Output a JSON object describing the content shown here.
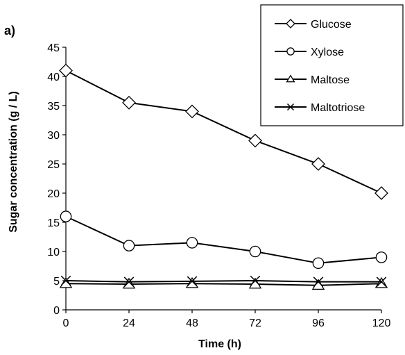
{
  "chart_data": {
    "type": "line",
    "panel_label": "a)",
    "xlabel": "Time (h)",
    "ylabel": "Sugar concentration (g / L)",
    "x": [
      0,
      24,
      48,
      72,
      96,
      120
    ],
    "xlim": [
      0,
      120
    ],
    "ylim": [
      0,
      45
    ],
    "xticks": [
      "0",
      "24",
      "48",
      "72",
      "96",
      "120"
    ],
    "yticks": [
      "0",
      "5",
      "10",
      "15",
      "20",
      "25",
      "30",
      "35",
      "40",
      "45"
    ],
    "grid": false,
    "legend_position": "top-right",
    "series": [
      {
        "name": "Glucose",
        "marker": "diamond",
        "values": [
          41,
          35.5,
          34,
          29,
          25,
          20
        ]
      },
      {
        "name": "Xylose",
        "marker": "circle",
        "values": [
          16,
          11,
          11.5,
          10,
          8,
          9
        ]
      },
      {
        "name": "Maltose",
        "marker": "triangle",
        "values": [
          4.5,
          4.4,
          4.5,
          4.4,
          4.2,
          4.5
        ]
      },
      {
        "name": "Maltotriose",
        "marker": "x",
        "values": [
          5,
          4.8,
          4.9,
          5,
          4.8,
          4.8
        ]
      }
    ],
    "line_color": "#000000"
  }
}
